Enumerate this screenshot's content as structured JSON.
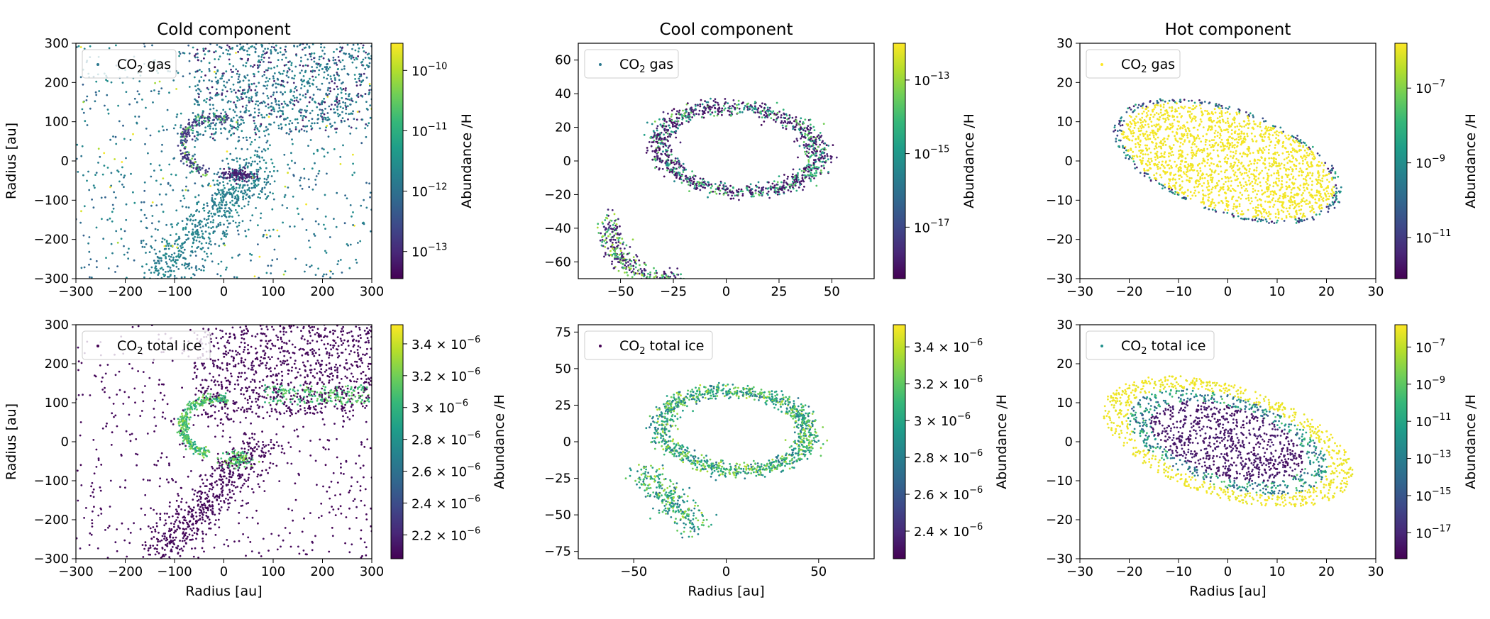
{
  "colormap": "viridis",
  "chart_data": [
    {
      "type": "scatter",
      "title": "Cold component",
      "xlabel": "",
      "ylabel": "Radius [au]",
      "xlim": [
        -300,
        300
      ],
      "ylim": [
        -300,
        300
      ],
      "xticks": [
        -300,
        -200,
        -100,
        0,
        100,
        200,
        300
      ],
      "yticks": [
        -300,
        -200,
        -100,
        0,
        100,
        200,
        300
      ],
      "legend": {
        "label": "CO₂ gas",
        "base": "CO",
        "sub": "2",
        "rest": " gas",
        "placement": "top-left",
        "marker_color": "#2a788e"
      },
      "colorbar": {
        "label": "Abundance /H",
        "scale": "log",
        "ticks": [
          {
            "base": "10",
            "exp": "−10",
            "v": -10
          },
          {
            "base": "10",
            "exp": "−11",
            "v": -11
          },
          {
            "base": "10",
            "exp": "−12",
            "v": -12
          },
          {
            "base": "10",
            "exp": "−13",
            "v": -13
          }
        ],
        "range": [
          -13.45,
          -9.55
        ]
      },
      "shape": "cold-gas",
      "points": 2600
    },
    {
      "type": "scatter",
      "title": "Cool component",
      "xlabel": "",
      "ylabel": "",
      "xlim": [
        -70,
        70
      ],
      "ylim": [
        -70,
        70
      ],
      "xticks": [
        -50,
        -25,
        0,
        25,
        50
      ],
      "yticks": [
        -60,
        -40,
        -20,
        0,
        20,
        40,
        60
      ],
      "legend": {
        "label": "CO₂ gas",
        "base": "CO",
        "sub": "2",
        "rest": " gas",
        "placement": "top-left",
        "marker_color": "#2a788e"
      },
      "colorbar": {
        "label": "Abundance /H",
        "scale": "log",
        "ticks": [
          {
            "base": "10",
            "exp": "−13",
            "v": -13
          },
          {
            "base": "10",
            "exp": "−15",
            "v": -15
          },
          {
            "base": "10",
            "exp": "−17",
            "v": -17
          }
        ],
        "range": [
          -18.4,
          -12.0
        ]
      },
      "shape": "cool-gas",
      "points": 1500
    },
    {
      "type": "scatter",
      "title": "Hot component",
      "xlabel": "",
      "ylabel": "",
      "xlim": [
        -30,
        30
      ],
      "ylim": [
        -30,
        30
      ],
      "xticks": [
        -30,
        -20,
        -10,
        0,
        10,
        20,
        30
      ],
      "yticks": [
        -30,
        -20,
        -10,
        0,
        10,
        20,
        30
      ],
      "legend": {
        "label": "CO₂ gas",
        "base": "CO",
        "sub": "2",
        "rest": " gas",
        "placement": "top-left",
        "marker_color": "#fde725"
      },
      "colorbar": {
        "label": "Abundance /H",
        "scale": "log",
        "ticks": [
          {
            "base": "10",
            "exp": "−7",
            "v": -7
          },
          {
            "base": "10",
            "exp": "−9",
            "v": -9
          },
          {
            "base": "10",
            "exp": "−11",
            "v": -11
          }
        ],
        "range": [
          -12.1,
          -5.8
        ]
      },
      "shape": "hot-gas",
      "points": 2000
    },
    {
      "type": "scatter",
      "title": "",
      "xlabel": "Radius [au]",
      "ylabel": "Radius [au]",
      "xlim": [
        -300,
        300
      ],
      "ylim": [
        -300,
        300
      ],
      "xticks": [
        -300,
        -200,
        -100,
        0,
        100,
        200,
        300
      ],
      "yticks": [
        -300,
        -200,
        -100,
        0,
        100,
        200,
        300
      ],
      "legend": {
        "label": "CO₂ total ice",
        "base": "CO",
        "sub": "2",
        "rest": " total ice",
        "placement": "top-left",
        "marker_color": "#440154"
      },
      "colorbar": {
        "label": "Abundance /H",
        "scale": "linear",
        "ticks": [
          {
            "base": "3.4 × 10",
            "exp": "−6",
            "v": 3.4
          },
          {
            "base": "3.2 × 10",
            "exp": "−6",
            "v": 3.2
          },
          {
            "base": "3 × 10",
            "exp": "−6",
            "v": 3.0
          },
          {
            "base": "2.8 × 10",
            "exp": "−6",
            "v": 2.8
          },
          {
            "base": "2.6 × 10",
            "exp": "−6",
            "v": 2.6
          },
          {
            "base": "2.4 × 10",
            "exp": "−6",
            "v": 2.4
          },
          {
            "base": "2.2 × 10",
            "exp": "−6",
            "v": 2.2
          }
        ],
        "range": [
          2.05,
          3.52
        ]
      },
      "shape": "cold-ice",
      "points": 2600
    },
    {
      "type": "scatter",
      "title": "",
      "xlabel": "Radius [au]",
      "ylabel": "",
      "xlim": [
        -80,
        80
      ],
      "ylim": [
        -80,
        80
      ],
      "xticks": [
        -50,
        0,
        50
      ],
      "yticks": [
        -75,
        -50,
        -25,
        0,
        25,
        50,
        75
      ],
      "legend": {
        "label": "CO₂ total ice",
        "base": "CO",
        "sub": "2",
        "rest": " total ice",
        "placement": "top-left",
        "marker_color": "#440154"
      },
      "colorbar": {
        "label": "Abundance /H",
        "scale": "linear",
        "ticks": [
          {
            "base": "3.4 × 10",
            "exp": "−6",
            "v": 3.4
          },
          {
            "base": "3.2 × 10",
            "exp": "−6",
            "v": 3.2
          },
          {
            "base": "3 × 10",
            "exp": "−6",
            "v": 3.0
          },
          {
            "base": "2.8 × 10",
            "exp": "−6",
            "v": 2.8
          },
          {
            "base": "2.6 × 10",
            "exp": "−6",
            "v": 2.6
          },
          {
            "base": "2.4 × 10",
            "exp": "−6",
            "v": 2.4
          }
        ],
        "range": [
          2.25,
          3.52
        ]
      },
      "shape": "cool-ice",
      "points": 1500
    },
    {
      "type": "scatter",
      "title": "",
      "xlabel": "Radius [au]",
      "ylabel": "",
      "xlim": [
        -30,
        30
      ],
      "ylim": [
        -30,
        30
      ],
      "xticks": [
        -30,
        -20,
        -10,
        0,
        10,
        20,
        30
      ],
      "yticks": [
        -30,
        -20,
        -10,
        0,
        10,
        20,
        30
      ],
      "legend": {
        "label": "CO₂ total ice",
        "base": "CO",
        "sub": "2",
        "rest": " total ice",
        "placement": "top-left",
        "marker_color": "#21918c"
      },
      "colorbar": {
        "label": "Abundance /H",
        "scale": "log",
        "ticks": [
          {
            "base": "10",
            "exp": "−7",
            "v": -7
          },
          {
            "base": "10",
            "exp": "−9",
            "v": -9
          },
          {
            "base": "10",
            "exp": "−11",
            "v": -11
          },
          {
            "base": "10",
            "exp": "−13",
            "v": -13
          },
          {
            "base": "10",
            "exp": "−15",
            "v": -15
          },
          {
            "base": "10",
            "exp": "−17",
            "v": -17
          }
        ],
        "range": [
          -18.4,
          -5.8
        ]
      },
      "shape": "hot-ice",
      "points": 2000
    }
  ]
}
